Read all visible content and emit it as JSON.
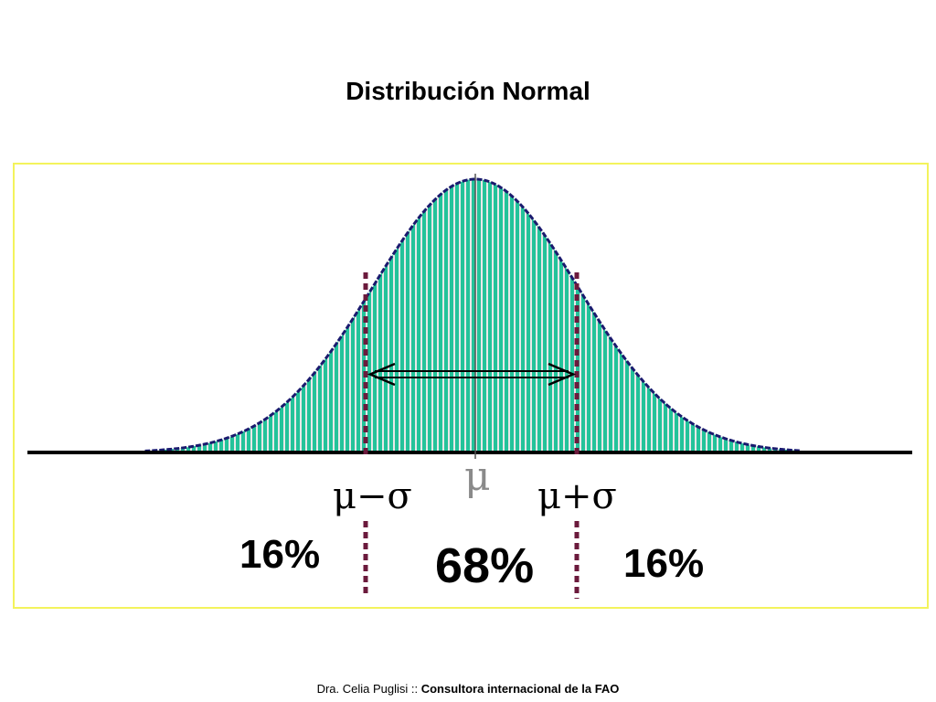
{
  "title": "Distribución Normal",
  "labels": {
    "mu": "μ",
    "mu_minus_sigma": "μ−σ",
    "mu_plus_sigma": "μ+σ"
  },
  "percentages": {
    "left": "16%",
    "center": "68%",
    "right": "16%"
  },
  "footer": {
    "author": "Dra. Celia Puglisi",
    "separator": " :: ",
    "role": "Consultora internacional de la FAO"
  },
  "colors": {
    "fill": "#23c39a",
    "stripe": "#e8e8e8",
    "curve_outline": "#1a1a6e",
    "sigma_line": "#6b1a3c",
    "frame": "#f3f35c",
    "axis": "#000000",
    "mean_line": "#555555"
  },
  "chart_data": {
    "type": "area",
    "distribution": "normal",
    "mean": 0,
    "sd": 1,
    "marks": [
      -1,
      0,
      1
    ],
    "shares": [
      16,
      68,
      16
    ]
  }
}
